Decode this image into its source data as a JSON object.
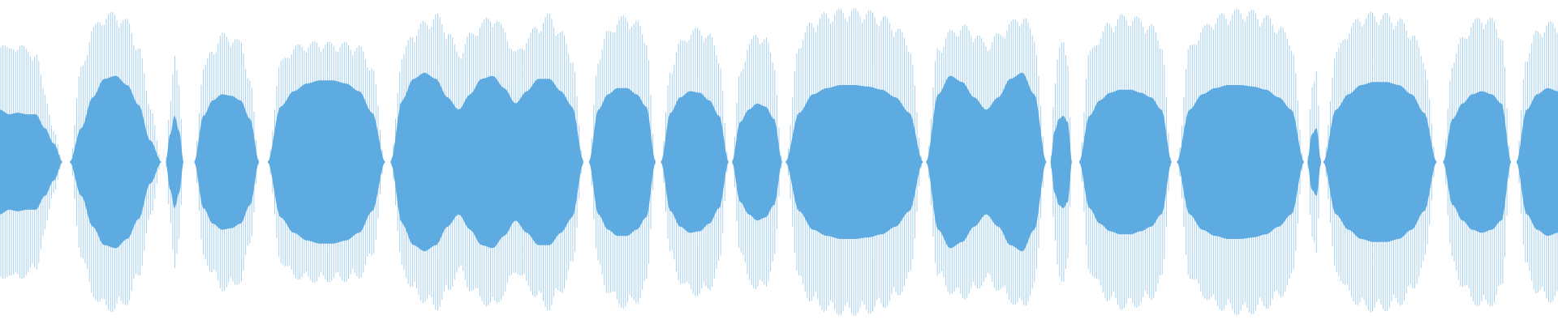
{
  "waveform": {
    "style": "mirrored-amplitude-waveform",
    "core_color": "#5dabe1",
    "line_color": "#5dabe1",
    "background": "#ffffff",
    "segments": [
      {
        "start": 0.0,
        "end": 0.0403,
        "outer": [
          0.83,
          0.74,
          0.79,
          0.74,
          0.72,
          0.46,
          0.2,
          0.0
        ],
        "inner": [
          0.34,
          0.31,
          0.32,
          0.31,
          0.31,
          0.22,
          0.12,
          0.0
        ]
      },
      {
        "start": 0.0447,
        "end": 0.1038,
        "outer": [
          0.0,
          0.62,
          0.88,
          0.97,
          0.98,
          0.93,
          0.76,
          0.38,
          0.0
        ],
        "inner": [
          0.0,
          0.22,
          0.42,
          0.54,
          0.56,
          0.5,
          0.37,
          0.14,
          0.0
        ]
      },
      {
        "start": 0.1063,
        "end": 0.1179,
        "outer": [
          0.0,
          0.42,
          0.7,
          0.5,
          0.0
        ],
        "inner": [
          0.0,
          0.18,
          0.3,
          0.2,
          0.0
        ]
      },
      {
        "start": 0.1246,
        "end": 0.1664,
        "outer": [
          0.0,
          0.62,
          0.75,
          0.84,
          0.83,
          0.79,
          0.55,
          0.0
        ],
        "inner": [
          0.0,
          0.3,
          0.4,
          0.44,
          0.43,
          0.4,
          0.28,
          0.0
        ]
      },
      {
        "start": 0.1717,
        "end": 0.2473,
        "outer": [
          0.0,
          0.66,
          0.76,
          0.78,
          0.79,
          0.78,
          0.78,
          0.76,
          0.63,
          0.0
        ],
        "inner": [
          0.0,
          0.36,
          0.46,
          0.51,
          0.53,
          0.53,
          0.51,
          0.46,
          0.32,
          0.0
        ]
      },
      {
        "start": 0.2507,
        "end": 0.3746,
        "outer": [
          0.0,
          0.7,
          0.86,
          0.92,
          0.97,
          0.88,
          0.72,
          0.84,
          0.92,
          0.97,
          0.88,
          0.72,
          0.82,
          0.91,
          0.97,
          0.86,
          0.7,
          0.0
        ],
        "inner": [
          0.0,
          0.4,
          0.54,
          0.58,
          0.54,
          0.42,
          0.34,
          0.44,
          0.54,
          0.56,
          0.48,
          0.38,
          0.46,
          0.54,
          0.54,
          0.46,
          0.36,
          0.0
        ]
      },
      {
        "start": 0.3779,
        "end": 0.4209,
        "outer": [
          0.0,
          0.7,
          0.86,
          0.94,
          0.96,
          0.92,
          0.83,
          0.0
        ],
        "inner": [
          0.0,
          0.34,
          0.44,
          0.48,
          0.48,
          0.44,
          0.36,
          0.0
        ]
      },
      {
        "start": 0.4241,
        "end": 0.4678,
        "outer": [
          0.0,
          0.62,
          0.79,
          0.86,
          0.88,
          0.84,
          0.7,
          0.0
        ],
        "inner": [
          0.0,
          0.32,
          0.42,
          0.46,
          0.45,
          0.4,
          0.3,
          0.0
        ]
      },
      {
        "start": 0.4697,
        "end": 0.5022,
        "outer": [
          0.0,
          0.6,
          0.78,
          0.85,
          0.82,
          0.66,
          0.0
        ],
        "inner": [
          0.0,
          0.26,
          0.34,
          0.38,
          0.36,
          0.28,
          0.0
        ]
      },
      {
        "start": 0.5041,
        "end": 0.5925,
        "outer": [
          0.0,
          0.8,
          0.93,
          0.98,
          1.0,
          1.0,
          0.99,
          0.96,
          0.9,
          0.78,
          0.0
        ],
        "inner": [
          0.0,
          0.32,
          0.44,
          0.48,
          0.5,
          0.5,
          0.49,
          0.47,
          0.42,
          0.32,
          0.0
        ]
      },
      {
        "start": 0.5944,
        "end": 0.6716,
        "outer": [
          0.0,
          0.76,
          0.86,
          0.9,
          0.86,
          0.78,
          0.84,
          0.92,
          0.97,
          0.84,
          0.0
        ],
        "inner": [
          0.0,
          0.44,
          0.56,
          0.52,
          0.42,
          0.34,
          0.42,
          0.54,
          0.58,
          0.44,
          0.0
        ]
      },
      {
        "start": 0.6741,
        "end": 0.6881,
        "outer": [
          0.0,
          0.52,
          0.74,
          0.8,
          0.7,
          0.0
        ],
        "inner": [
          0.0,
          0.2,
          0.28,
          0.3,
          0.26,
          0.0
        ]
      },
      {
        "start": 0.6926,
        "end": 0.7521,
        "outer": [
          0.0,
          0.72,
          0.84,
          0.92,
          0.96,
          0.96,
          0.94,
          0.9,
          0.8,
          0.0
        ],
        "inner": [
          0.0,
          0.3,
          0.4,
          0.45,
          0.47,
          0.47,
          0.45,
          0.42,
          0.34,
          0.0
        ]
      },
      {
        "start": 0.7553,
        "end": 0.8371,
        "outer": [
          0.0,
          0.76,
          0.88,
          0.95,
          0.98,
          1.0,
          0.99,
          0.96,
          0.9,
          0.8,
          0.0
        ],
        "inner": [
          0.0,
          0.34,
          0.44,
          0.48,
          0.5,
          0.5,
          0.49,
          0.47,
          0.42,
          0.34,
          0.0
        ]
      },
      {
        "start": 0.839,
        "end": 0.848,
        "outer": [
          0.0,
          0.52,
          0.62,
          0.0
        ],
        "inner": [
          0.0,
          0.18,
          0.22,
          0.0
        ]
      },
      {
        "start": 0.8493,
        "end": 0.9222,
        "outer": [
          0.0,
          0.72,
          0.88,
          0.96,
          0.98,
          0.97,
          0.94,
          0.86,
          0.68,
          0.0
        ],
        "inner": [
          0.0,
          0.34,
          0.44,
          0.5,
          0.52,
          0.52,
          0.5,
          0.44,
          0.32,
          0.0
        ]
      },
      {
        "start": 0.9261,
        "end": 0.97,
        "outer": [
          0.0,
          0.68,
          0.82,
          0.92,
          0.96,
          0.94,
          0.86,
          0.0
        ],
        "inner": [
          0.0,
          0.28,
          0.38,
          0.44,
          0.46,
          0.44,
          0.38,
          0.0
        ]
      },
      {
        "start": 0.9732,
        "end": 1.0,
        "outer": [
          0.0,
          0.72,
          0.86,
          0.92,
          0.9
        ],
        "inner": [
          0.0,
          0.34,
          0.44,
          0.48,
          0.46
        ]
      }
    ]
  }
}
